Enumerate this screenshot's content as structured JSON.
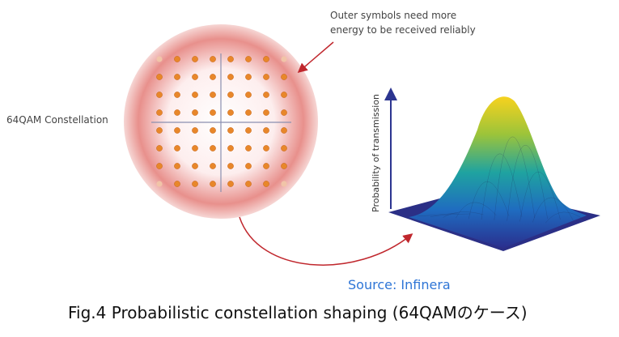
{
  "annotation": {
    "lines": [
      "Outer symbols need more",
      "energy to be received reliably"
    ]
  },
  "constellation_label": "64QAM Constellation",
  "surface_axis_label": "Probability of transmission",
  "source": "Source: Infinera",
  "caption": "Fig.4 Probabilistic constellation shaping (64QAMのケース)"
}
